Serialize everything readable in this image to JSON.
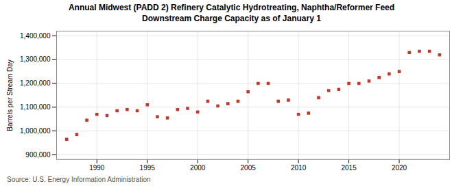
{
  "chart_data": {
    "type": "scatter",
    "title": "Annual Midwest (PADD 2) Refinery Catalytic Hydrotreating, Naphtha/Reformer Feed\nDownstream Charge Capacity as of January 1",
    "ylabel": "Barrels per Stream Day",
    "source": "Source: U.S. Energy Information Administration",
    "color": "#c0392b",
    "marker": "square",
    "grid": true,
    "xlim": [
      1986,
      2025
    ],
    "ylim": [
      880000,
      1420000
    ],
    "xticks": [
      1990,
      1995,
      2000,
      2005,
      2010,
      2015,
      2020
    ],
    "yticks": [
      {
        "value": 900000,
        "label": "900,000"
      },
      {
        "value": 1000000,
        "label": "1,000,000"
      },
      {
        "value": 1100000,
        "label": "1,100,000"
      },
      {
        "value": 1200000,
        "label": "1,200,000"
      },
      {
        "value": 1300000,
        "label": "1,300,000"
      },
      {
        "value": 1400000,
        "label": "1,400,000"
      }
    ],
    "x": [
      1987,
      1988,
      1989,
      1990,
      1991,
      1992,
      1993,
      1994,
      1995,
      1996,
      1997,
      1998,
      1999,
      2000,
      2001,
      2002,
      2003,
      2004,
      2005,
      2006,
      2007,
      2008,
      2009,
      2010,
      2011,
      2012,
      2013,
      2014,
      2015,
      2016,
      2017,
      2018,
      2019,
      2020,
      2021,
      2022,
      2023,
      2024
    ],
    "values": [
      965000,
      985000,
      1045000,
      1070000,
      1065000,
      1085000,
      1090000,
      1085000,
      1110000,
      1060000,
      1055000,
      1090000,
      1095000,
      1080000,
      1125000,
      1105000,
      1115000,
      1125000,
      1165000,
      1200000,
      1200000,
      1125000,
      1130000,
      1070000,
      1075000,
      1140000,
      1170000,
      1175000,
      1200000,
      1200000,
      1210000,
      1225000,
      1240000,
      1250000,
      1330000,
      1335000,
      1335000,
      1320000
    ]
  }
}
